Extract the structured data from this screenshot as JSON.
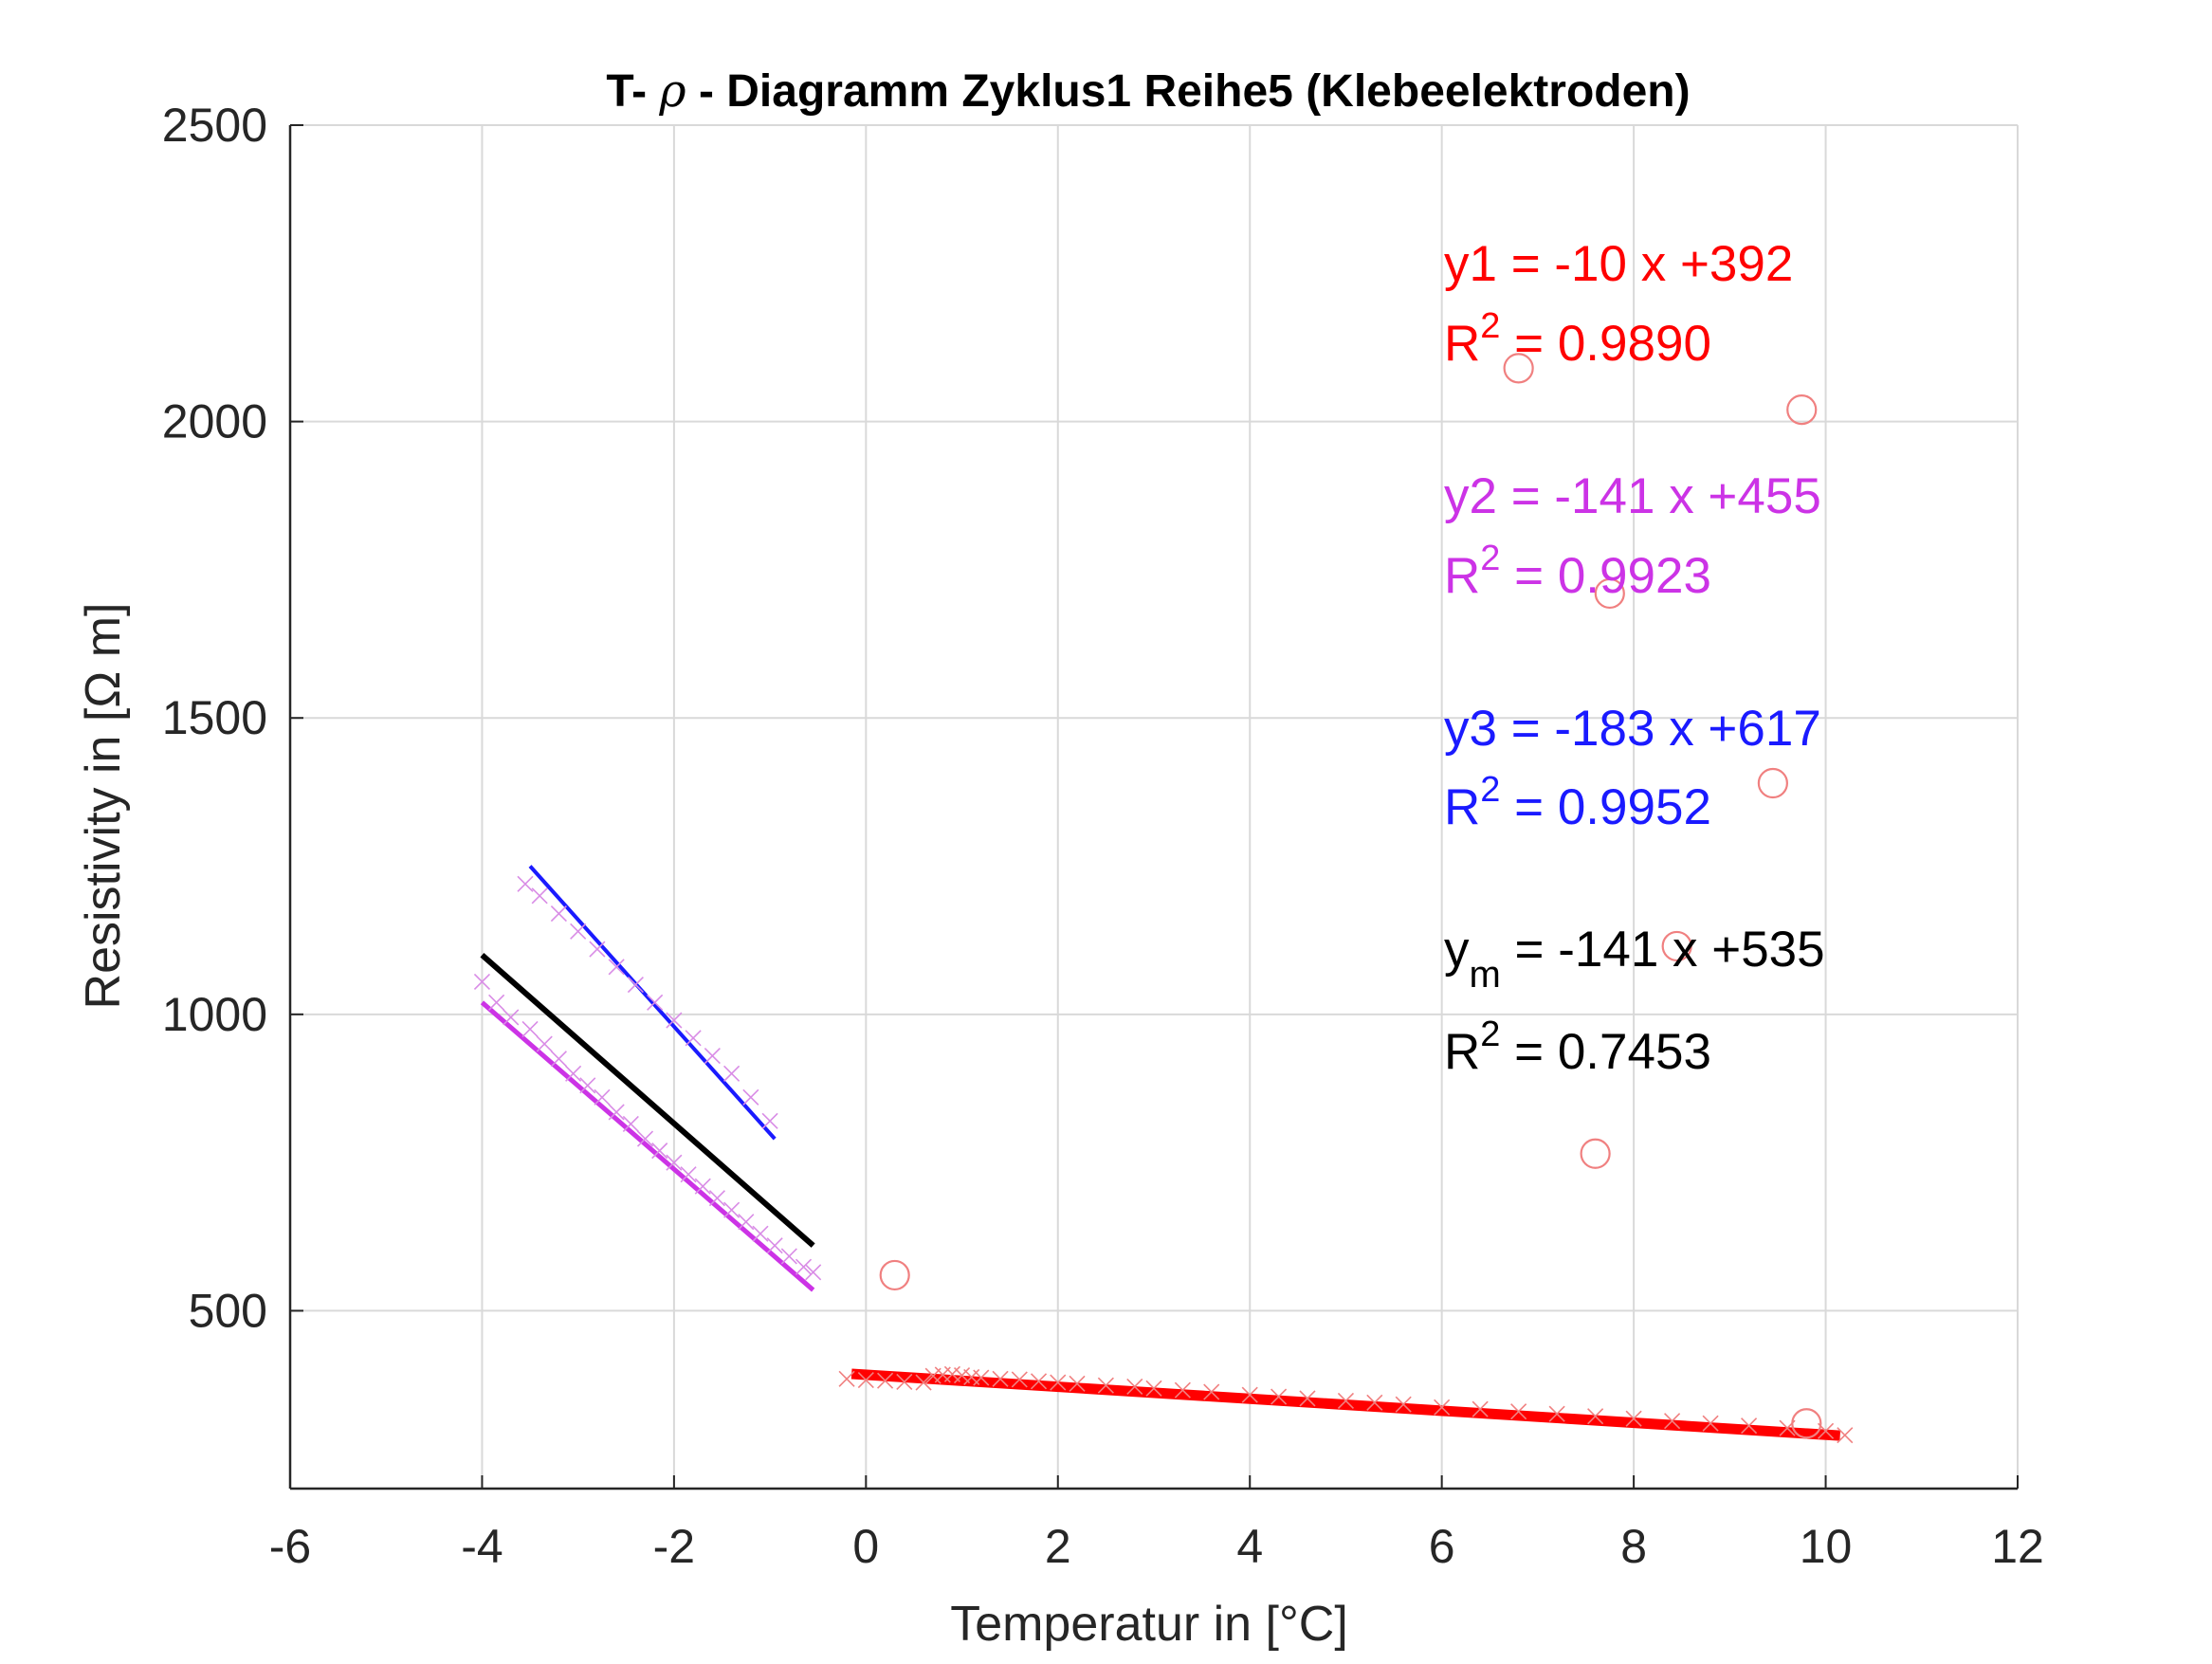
{
  "chart_data": {
    "type": "scatter",
    "title": {
      "prefix": "T- ",
      "symbol": "ρ",
      "suffix": " - Diagramm Zyklus1  Reihe5 (Klebeelektroden)"
    },
    "xlabel": "Temperatur in [°C]",
    "ylabel": "Resistivity in [Ω m]",
    "xlim": [
      -6,
      12
    ],
    "ylim": [
      200,
      2500
    ],
    "xticks": [
      -6,
      -4,
      -2,
      0,
      2,
      4,
      6,
      8,
      10,
      12
    ],
    "yticks": [
      500,
      1000,
      1500,
      2000,
      2500
    ],
    "grid": true,
    "colors": {
      "red": "#ff0000",
      "magenta": "#cc33e6",
      "blue": "#1a1aff",
      "black": "#000000",
      "marker_red": "#f08080",
      "marker_magenta": "#d98ce6",
      "grid": "#d9d9d9"
    },
    "fit_lines": [
      {
        "id": "y1",
        "color": "red",
        "x": [
          -0.15,
          10.15
        ],
        "y": [
          393.5,
          289.3
        ]
      },
      {
        "id": "y2",
        "color": "magenta",
        "x": [
          -4.0,
          -0.55
        ],
        "y": [
          1020,
          535
        ]
      },
      {
        "id": "y3",
        "color": "blue",
        "x": [
          -3.5,
          -0.95
        ],
        "y": [
          1250,
          790
        ]
      },
      {
        "id": "ym",
        "color": "black",
        "x": [
          -4.0,
          -0.55
        ],
        "y": [
          1100,
          610
        ]
      }
    ],
    "scatter_series": [
      {
        "name": "",
        "marker": "x",
        "color": "marker_red",
        "points": [
          [
            -0.2,
            385
          ],
          [
            0.0,
            383
          ],
          [
            0.2,
            382
          ],
          [
            0.4,
            380
          ],
          [
            0.6,
            379
          ],
          [
            0.7,
            390
          ],
          [
            0.8,
            392
          ],
          [
            0.9,
            393
          ],
          [
            1.0,
            391
          ],
          [
            1.1,
            388
          ],
          [
            1.2,
            387
          ],
          [
            1.4,
            385
          ],
          [
            1.6,
            384
          ],
          [
            1.8,
            381
          ],
          [
            2.0,
            379
          ],
          [
            2.2,
            377
          ],
          [
            2.5,
            374
          ],
          [
            2.8,
            372
          ],
          [
            3.0,
            369
          ],
          [
            3.3,
            366
          ],
          [
            3.6,
            363
          ],
          [
            4.0,
            358
          ],
          [
            4.3,
            355
          ],
          [
            4.6,
            352
          ],
          [
            5.0,
            348
          ],
          [
            5.3,
            345
          ],
          [
            5.6,
            342
          ],
          [
            6.0,
            337
          ],
          [
            6.4,
            334
          ],
          [
            6.8,
            330
          ],
          [
            7.2,
            326
          ],
          [
            7.6,
            322
          ],
          [
            8.0,
            318
          ],
          [
            8.4,
            314
          ],
          [
            8.8,
            310
          ],
          [
            9.2,
            306
          ],
          [
            9.6,
            302
          ],
          [
            10.0,
            297
          ],
          [
            10.2,
            290
          ]
        ]
      },
      {
        "name": "",
        "marker": "x",
        "color": "marker_magenta",
        "points": [
          [
            -4.0,
            1055
          ],
          [
            -3.85,
            1020
          ],
          [
            -3.7,
            995
          ],
          [
            -3.5,
            975
          ],
          [
            -3.35,
            950
          ],
          [
            -3.2,
            925
          ],
          [
            -3.05,
            900
          ],
          [
            -2.9,
            880
          ],
          [
            -2.75,
            860
          ],
          [
            -2.6,
            835
          ],
          [
            -2.45,
            815
          ],
          [
            -2.3,
            790
          ],
          [
            -2.15,
            770
          ],
          [
            -2.0,
            750
          ],
          [
            -1.85,
            730
          ],
          [
            -1.7,
            710
          ],
          [
            -1.55,
            690
          ],
          [
            -1.4,
            670
          ],
          [
            -1.25,
            650
          ],
          [
            -1.1,
            630
          ],
          [
            -0.95,
            610
          ],
          [
            -0.8,
            592
          ],
          [
            -0.65,
            574
          ],
          [
            -0.55,
            565
          ]
        ]
      },
      {
        "name": "",
        "marker": "x",
        "color": "marker_magenta",
        "points": [
          [
            -3.55,
            1220
          ],
          [
            -3.4,
            1200
          ],
          [
            -3.2,
            1170
          ],
          [
            -3.0,
            1140
          ],
          [
            -2.8,
            1110
          ],
          [
            -2.6,
            1080
          ],
          [
            -2.4,
            1050
          ],
          [
            -2.2,
            1020
          ],
          [
            -2.0,
            990
          ],
          [
            -1.8,
            960
          ],
          [
            -1.6,
            930
          ],
          [
            -1.4,
            900
          ],
          [
            -1.2,
            860
          ],
          [
            -1.0,
            820
          ]
        ]
      },
      {
        "name": "",
        "marker": "o",
        "color": "marker_red",
        "points": [
          [
            0.3,
            560
          ],
          [
            6.8,
            2090
          ],
          [
            9.75,
            2020
          ],
          [
            7.75,
            1710
          ],
          [
            9.45,
            1390
          ],
          [
            8.45,
            1115
          ],
          [
            7.6,
            765
          ],
          [
            9.8,
            310
          ]
        ]
      }
    ],
    "annotations": [
      {
        "color": "red",
        "eq_label": "y1",
        "eq_sub": "",
        "eq_rest": " = -10 x +392",
        "r2_label": "R",
        "r2_sup": "2",
        "r2_rest": " = 0.9890"
      },
      {
        "color": "magenta",
        "eq_label": "y2",
        "eq_sub": "",
        "eq_rest": " = -141 x +455",
        "r2_label": "R",
        "r2_sup": "2",
        "r2_rest": " = 0.9923"
      },
      {
        "color": "blue",
        "eq_label": "y3",
        "eq_sub": "",
        "eq_rest": " = -183 x +617",
        "r2_label": "R",
        "r2_sup": "2",
        "r2_rest": " = 0.9952"
      },
      {
        "color": "black",
        "eq_label": "y",
        "eq_sub": "m",
        "eq_rest": " = -141 x +535",
        "r2_label": "R",
        "r2_sup": "2",
        "r2_rest": " = 0.7453"
      }
    ]
  }
}
